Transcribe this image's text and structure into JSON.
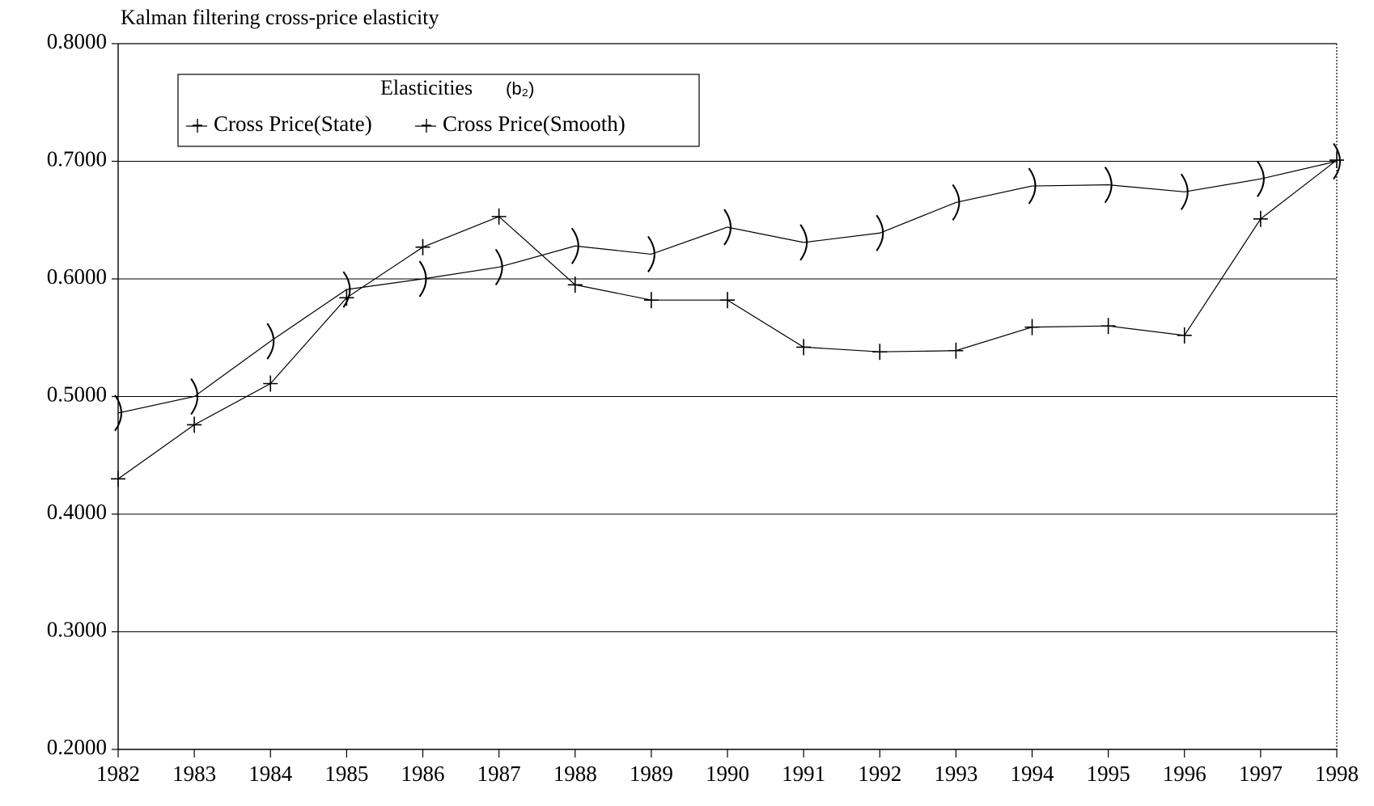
{
  "chart_data": {
    "type": "line",
    "title": "Kalman filtering cross-price elasticity",
    "legend_title": "Elasticities",
    "legend_symbol": "(b₂)",
    "x": [
      1982,
      1983,
      1984,
      1985,
      1986,
      1987,
      1988,
      1989,
      1990,
      1991,
      1992,
      1993,
      1994,
      1995,
      1996,
      1997,
      1998
    ],
    "xlim": [
      1982,
      1998
    ],
    "xticks": [
      1982,
      1983,
      1984,
      1985,
      1986,
      1987,
      1988,
      1989,
      1990,
      1991,
      1992,
      1993,
      1994,
      1995,
      1996,
      1997,
      1998
    ],
    "ylim": [
      0.2,
      0.8
    ],
    "yticks": [
      {
        "value": 0.2,
        "label": "0.2000"
      },
      {
        "value": 0.3,
        "label": "0.3000"
      },
      {
        "value": 0.4,
        "label": "0.4000"
      },
      {
        "value": 0.5,
        "label": "0.5000"
      },
      {
        "value": 0.6,
        "label": "0.6000"
      },
      {
        "value": 0.7,
        "label": "0.7000"
      },
      {
        "value": 0.8,
        "label": "0.8000"
      }
    ],
    "grid": true,
    "series": [
      {
        "name": "Cross Price(State)",
        "color": "#000000",
        "marker": "plus",
        "values": [
          0.43,
          0.476,
          0.511,
          0.584,
          0.627,
          0.653,
          0.595,
          0.582,
          0.582,
          0.542,
          0.538,
          0.539,
          0.559,
          0.56,
          0.552,
          0.651,
          0.701
        ]
      },
      {
        "name": "Cross Price(Smooth)",
        "color": "#000000",
        "marker": "paren",
        "values": [
          0.486,
          0.5,
          0.547,
          0.591,
          0.6,
          0.61,
          0.628,
          0.621,
          0.644,
          0.631,
          0.639,
          0.665,
          0.679,
          0.68,
          0.674,
          0.685,
          0.7
        ]
      }
    ]
  }
}
